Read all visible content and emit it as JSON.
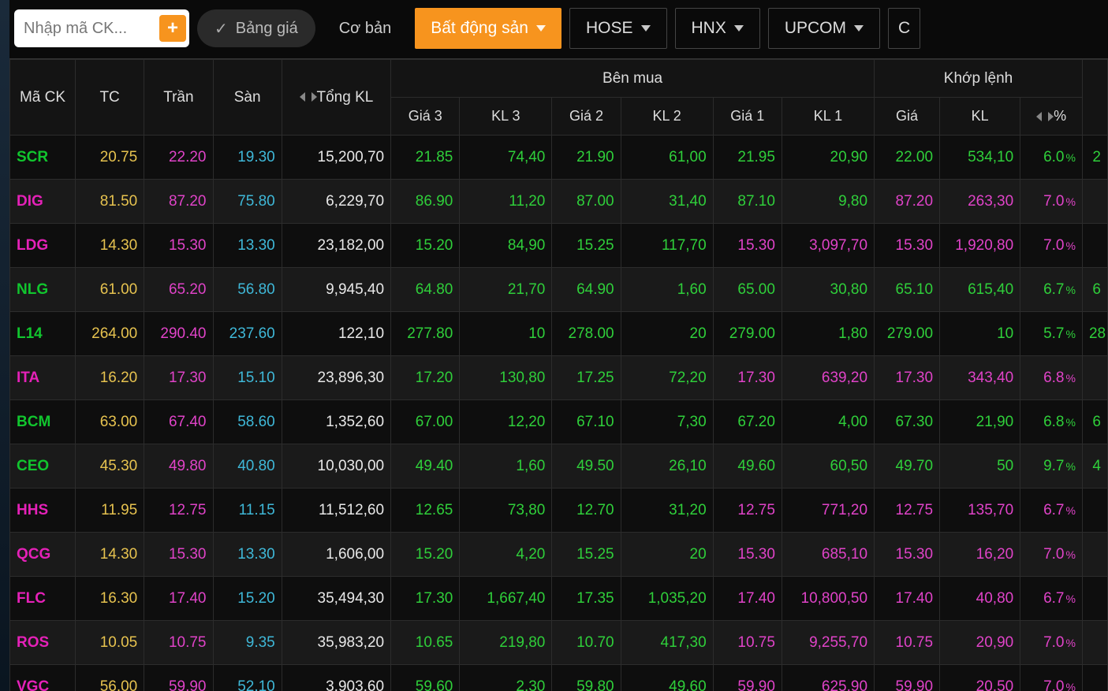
{
  "colors": {
    "yellow": "#e6c24f",
    "magenta": "#e043c8",
    "cyan": "#3fb8d8",
    "white": "#e8e8e8",
    "green": "#2fcf3a",
    "sym_green": "#11c52e",
    "sym_magenta": "#e521b8"
  },
  "toolbar": {
    "search_placeholder": "Nhập mã CK...",
    "banggia": "Bảng giá",
    "coban": "Cơ bản",
    "batdongsan": "Bất động sản",
    "hose": "HOSE",
    "hnx": "HNX",
    "upcom": "UPCOM",
    "more": "C"
  },
  "headers": {
    "mack": "Mã CK",
    "tc": "TC",
    "tran": "Trần",
    "san": "Sàn",
    "tongkl": "Tổng KL",
    "benmua": "Bên mua",
    "khoplenh": "Khớp lệnh",
    "gia3": "Giá 3",
    "kl3": "KL 3",
    "gia2": "Giá 2",
    "kl2": "KL 2",
    "gia1": "Giá 1",
    "kl1": "KL 1",
    "gia": "Giá",
    "kl": "KL",
    "pct": "%"
  },
  "rows": [
    {
      "sym": "SCR",
      "sym_c": "sym_green",
      "tc": "20.75",
      "tran": "22.20",
      "san": "19.30",
      "tong": "15,200,70",
      "g3": "21.85",
      "g3c": "green",
      "k3": "74,40",
      "k3c": "green",
      "g2": "21.90",
      "g2c": "green",
      "k2": "61,00",
      "k2c": "green",
      "g1": "21.95",
      "g1c": "green",
      "k1": "20,90",
      "k1c": "green",
      "gp": "22.00",
      "gpc": "green",
      "kp": "534,10",
      "kpc": "green",
      "pct": "6.0",
      "pctc": "green",
      "tail": "2",
      "tailc": "green"
    },
    {
      "sym": "DIG",
      "sym_c": "sym_magenta",
      "tc": "81.50",
      "tran": "87.20",
      "san": "75.80",
      "tong": "6,229,70",
      "g3": "86.90",
      "g3c": "green",
      "k3": "11,20",
      "k3c": "green",
      "g2": "87.00",
      "g2c": "green",
      "k2": "31,40",
      "k2c": "green",
      "g1": "87.10",
      "g1c": "green",
      "k1": "9,80",
      "k1c": "green",
      "gp": "87.20",
      "gpc": "magenta",
      "kp": "263,30",
      "kpc": "magenta",
      "pct": "7.0",
      "pctc": "magenta",
      "tail": "",
      "tailc": ""
    },
    {
      "sym": "LDG",
      "sym_c": "sym_magenta",
      "tc": "14.30",
      "tran": "15.30",
      "san": "13.30",
      "tong": "23,182,00",
      "g3": "15.20",
      "g3c": "green",
      "k3": "84,90",
      "k3c": "green",
      "g2": "15.25",
      "g2c": "green",
      "k2": "117,70",
      "k2c": "green",
      "g1": "15.30",
      "g1c": "magenta",
      "k1": "3,097,70",
      "k1c": "magenta",
      "gp": "15.30",
      "gpc": "magenta",
      "kp": "1,920,80",
      "kpc": "magenta",
      "pct": "7.0",
      "pctc": "magenta",
      "tail": "",
      "tailc": ""
    },
    {
      "sym": "NLG",
      "sym_c": "sym_green",
      "tc": "61.00",
      "tran": "65.20",
      "san": "56.80",
      "tong": "9,945,40",
      "g3": "64.80",
      "g3c": "green",
      "k3": "21,70",
      "k3c": "green",
      "g2": "64.90",
      "g2c": "green",
      "k2": "1,60",
      "k2c": "green",
      "g1": "65.00",
      "g1c": "green",
      "k1": "30,80",
      "k1c": "green",
      "gp": "65.10",
      "gpc": "green",
      "kp": "615,40",
      "kpc": "green",
      "pct": "6.7",
      "pctc": "green",
      "tail": "6",
      "tailc": "green"
    },
    {
      "sym": "L14",
      "sym_c": "sym_green",
      "tc": "264.00",
      "tran": "290.40",
      "san": "237.60",
      "tong": "122,10",
      "g3": "277.80",
      "g3c": "green",
      "k3": "10",
      "k3c": "green",
      "g2": "278.00",
      "g2c": "green",
      "k2": "20",
      "k2c": "green",
      "g1": "279.00",
      "g1c": "green",
      "k1": "1,80",
      "k1c": "green",
      "gp": "279.00",
      "gpc": "green",
      "kp": "10",
      "kpc": "green",
      "pct": "5.7",
      "pctc": "green",
      "tail": "28",
      "tailc": "green"
    },
    {
      "sym": "ITA",
      "sym_c": "sym_magenta",
      "tc": "16.20",
      "tran": "17.30",
      "san": "15.10",
      "tong": "23,896,30",
      "g3": "17.20",
      "g3c": "green",
      "k3": "130,80",
      "k3c": "green",
      "g2": "17.25",
      "g2c": "green",
      "k2": "72,20",
      "k2c": "green",
      "g1": "17.30",
      "g1c": "magenta",
      "k1": "639,20",
      "k1c": "magenta",
      "gp": "17.30",
      "gpc": "magenta",
      "kp": "343,40",
      "kpc": "magenta",
      "pct": "6.8",
      "pctc": "magenta",
      "tail": "",
      "tailc": ""
    },
    {
      "sym": "BCM",
      "sym_c": "sym_green",
      "tc": "63.00",
      "tran": "67.40",
      "san": "58.60",
      "tong": "1,352,60",
      "g3": "67.00",
      "g3c": "green",
      "k3": "12,20",
      "k3c": "green",
      "g2": "67.10",
      "g2c": "green",
      "k2": "7,30",
      "k2c": "green",
      "g1": "67.20",
      "g1c": "green",
      "k1": "4,00",
      "k1c": "green",
      "gp": "67.30",
      "gpc": "green",
      "kp": "21,90",
      "kpc": "green",
      "pct": "6.8",
      "pctc": "green",
      "tail": "6",
      "tailc": "green"
    },
    {
      "sym": "CEO",
      "sym_c": "sym_green",
      "tc": "45.30",
      "tran": "49.80",
      "san": "40.80",
      "tong": "10,030,00",
      "g3": "49.40",
      "g3c": "green",
      "k3": "1,60",
      "k3c": "green",
      "g2": "49.50",
      "g2c": "green",
      "k2": "26,10",
      "k2c": "green",
      "g1": "49.60",
      "g1c": "green",
      "k1": "60,50",
      "k1c": "green",
      "gp": "49.70",
      "gpc": "green",
      "kp": "50",
      "kpc": "green",
      "pct": "9.7",
      "pctc": "green",
      "tail": "4",
      "tailc": "green"
    },
    {
      "sym": "HHS",
      "sym_c": "sym_magenta",
      "tc": "11.95",
      "tran": "12.75",
      "san": "11.15",
      "tong": "11,512,60",
      "g3": "12.65",
      "g3c": "green",
      "k3": "73,80",
      "k3c": "green",
      "g2": "12.70",
      "g2c": "green",
      "k2": "31,20",
      "k2c": "green",
      "g1": "12.75",
      "g1c": "magenta",
      "k1": "771,20",
      "k1c": "magenta",
      "gp": "12.75",
      "gpc": "magenta",
      "kp": "135,70",
      "kpc": "magenta",
      "pct": "6.7",
      "pctc": "magenta",
      "tail": "",
      "tailc": ""
    },
    {
      "sym": "QCG",
      "sym_c": "sym_magenta",
      "tc": "14.30",
      "tran": "15.30",
      "san": "13.30",
      "tong": "1,606,00",
      "g3": "15.20",
      "g3c": "green",
      "k3": "4,20",
      "k3c": "green",
      "g2": "15.25",
      "g2c": "green",
      "k2": "20",
      "k2c": "green",
      "g1": "15.30",
      "g1c": "magenta",
      "k1": "685,10",
      "k1c": "magenta",
      "gp": "15.30",
      "gpc": "magenta",
      "kp": "16,20",
      "kpc": "magenta",
      "pct": "7.0",
      "pctc": "magenta",
      "tail": "",
      "tailc": ""
    },
    {
      "sym": "FLC",
      "sym_c": "sym_magenta",
      "tc": "16.30",
      "tran": "17.40",
      "san": "15.20",
      "tong": "35,494,30",
      "g3": "17.30",
      "g3c": "green",
      "k3": "1,667,40",
      "k3c": "green",
      "g2": "17.35",
      "g2c": "green",
      "k2": "1,035,20",
      "k2c": "green",
      "g1": "17.40",
      "g1c": "magenta",
      "k1": "10,800,50",
      "k1c": "magenta",
      "gp": "17.40",
      "gpc": "magenta",
      "kp": "40,80",
      "kpc": "magenta",
      "pct": "6.7",
      "pctc": "magenta",
      "tail": "",
      "tailc": ""
    },
    {
      "sym": "ROS",
      "sym_c": "sym_magenta",
      "tc": "10.05",
      "tran": "10.75",
      "san": "9.35",
      "tong": "35,983,20",
      "g3": "10.65",
      "g3c": "green",
      "k3": "219,80",
      "k3c": "green",
      "g2": "10.70",
      "g2c": "green",
      "k2": "417,30",
      "k2c": "green",
      "g1": "10.75",
      "g1c": "magenta",
      "k1": "9,255,70",
      "k1c": "magenta",
      "gp": "10.75",
      "gpc": "magenta",
      "kp": "20,90",
      "kpc": "magenta",
      "pct": "7.0",
      "pctc": "magenta",
      "tail": "",
      "tailc": ""
    },
    {
      "sym": "VGC",
      "sym_c": "sym_magenta",
      "tc": "56.00",
      "tran": "59.90",
      "san": "52.10",
      "tong": "3,903,60",
      "g3": "59.60",
      "g3c": "green",
      "k3": "2,30",
      "k3c": "green",
      "g2": "59.80",
      "g2c": "green",
      "k2": "49,60",
      "k2c": "green",
      "g1": "59.90",
      "g1c": "magenta",
      "k1": "625,90",
      "k1c": "magenta",
      "gp": "59.90",
      "gpc": "magenta",
      "kp": "20,50",
      "kpc": "magenta",
      "pct": "7.0",
      "pctc": "magenta",
      "tail": "",
      "tailc": ""
    }
  ]
}
